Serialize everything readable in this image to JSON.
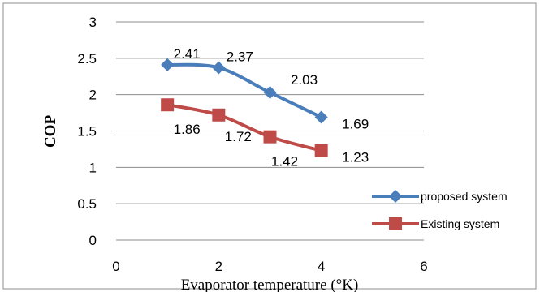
{
  "chart_data": {
    "type": "line",
    "xlabel": "Evaporator temperature (°K)",
    "ylabel": "COP",
    "xlim": [
      0,
      6
    ],
    "ylim": [
      0,
      3
    ],
    "xticks": [
      "0",
      "2",
      "4",
      "6"
    ],
    "yticks": [
      "0",
      "0.5",
      "1",
      "1.5",
      "2",
      "2.5",
      "3"
    ],
    "grid": "horizontal",
    "legend_position": "right",
    "series": [
      {
        "name": "proposed system",
        "color": "#4a7ebb",
        "marker": "diamond",
        "x": [
          1,
          2,
          3,
          4
        ],
        "y": [
          2.41,
          2.37,
          2.03,
          1.69
        ],
        "labels": [
          "2.41",
          "2.37",
          "2.03",
          "1.69"
        ]
      },
      {
        "name": "Existing system",
        "color": "#be4b48",
        "marker": "square",
        "x": [
          1,
          2,
          3,
          4
        ],
        "y": [
          1.86,
          1.72,
          1.42,
          1.23
        ],
        "labels": [
          "1.86",
          "1.72",
          "1.42",
          "1.23"
        ]
      }
    ]
  }
}
